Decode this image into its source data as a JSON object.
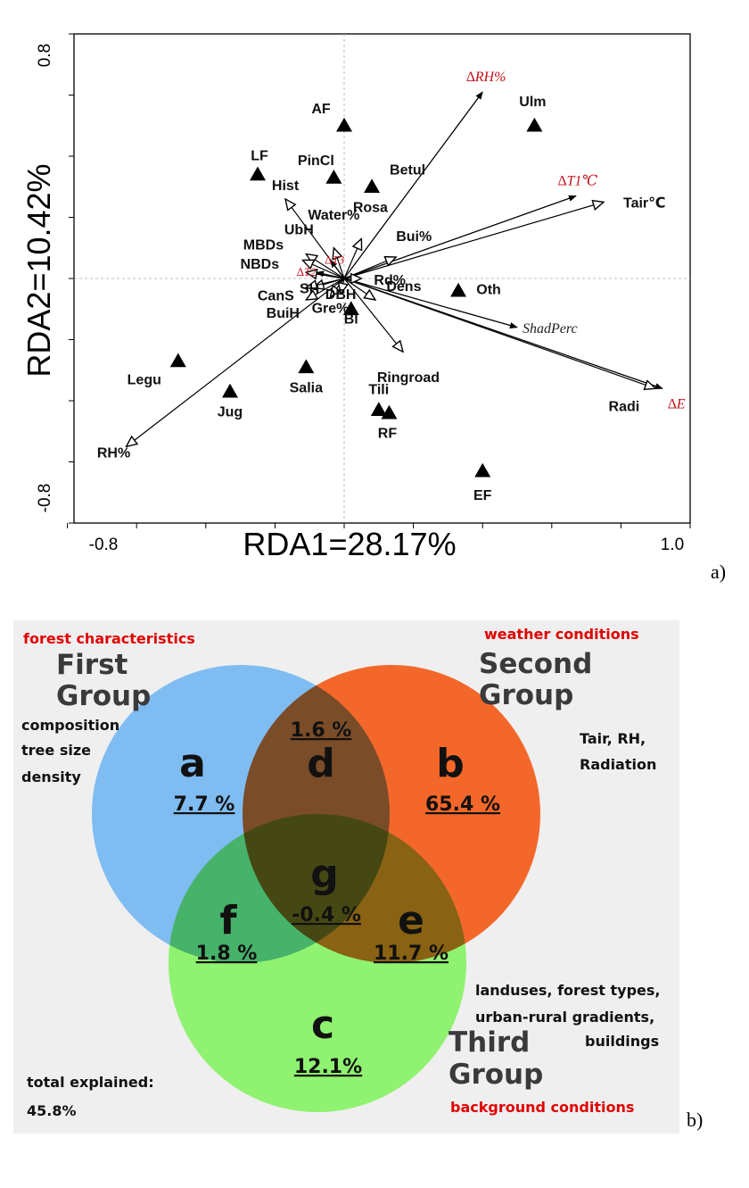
{
  "panel_a": {
    "panel_label": "a)",
    "chart_data": {
      "type": "scatter",
      "title": "",
      "xlabel": "RDA1=28.17%",
      "ylabel": "RDA2=10.42%",
      "xlim": [
        -0.8,
        1.0
      ],
      "ylim": [
        -0.8,
        0.8
      ],
      "x_tick_labels": [
        "-0.8",
        "1.0"
      ],
      "y_tick_labels": [
        "0.8",
        "-0.8"
      ],
      "grid": false,
      "reference_lines": "dotted at x=0 and y=0",
      "species_points": [
        {
          "label": "AF",
          "x": 0.0,
          "y": 0.5
        },
        {
          "label": "Ulm",
          "x": 0.55,
          "y": 0.5
        },
        {
          "label": "LF",
          "x": -0.25,
          "y": 0.34
        },
        {
          "label": "PinCl",
          "x": -0.03,
          "y": 0.33
        },
        {
          "label": "Betul",
          "x": 0.08,
          "y": 0.3
        },
        {
          "label": "Oth",
          "x": 0.33,
          "y": -0.04
        },
        {
          "label": "Bl",
          "x": 0.02,
          "y": -0.1
        },
        {
          "label": "Legu",
          "x": -0.48,
          "y": -0.27
        },
        {
          "label": "Salia",
          "x": -0.11,
          "y": -0.29
        },
        {
          "label": "Jug",
          "x": -0.33,
          "y": -0.37
        },
        {
          "label": "Tili",
          "x": 0.1,
          "y": -0.43
        },
        {
          "label": "RF",
          "x": 0.13,
          "y": -0.44
        },
        {
          "label": "EF",
          "x": 0.4,
          "y": -0.63
        }
      ],
      "response_arrows": [
        {
          "label": "∆RH%",
          "x": 0.4,
          "y": 0.61
        },
        {
          "label": "∆T1℃",
          "x": 0.67,
          "y": 0.27
        },
        {
          "label": "∆E",
          "x": 0.92,
          "y": -0.36
        },
        {
          "label": "ShadPerc",
          "x": 0.5,
          "y": -0.16
        },
        {
          "label": "∆T3",
          "x": -0.04,
          "y": 0.06
        },
        {
          "label": "∆T2",
          "x": -0.08,
          "y": 0.02
        }
      ],
      "explanatory_arrows": [
        {
          "label": "Tair℃",
          "x": 0.75,
          "y": 0.25
        },
        {
          "label": "Radi",
          "x": 0.9,
          "y": -0.36
        },
        {
          "label": "RH%",
          "x": -0.63,
          "y": -0.55
        },
        {
          "label": "Hist",
          "x": -0.17,
          "y": 0.26
        },
        {
          "label": "Water%",
          "x": -0.03,
          "y": 0.1
        },
        {
          "label": "UbH",
          "x": -0.11,
          "y": 0.08
        },
        {
          "label": "MBDs",
          "x": -0.12,
          "y": 0.06
        },
        {
          "label": "NBDs",
          "x": -0.11,
          "y": 0.02
        },
        {
          "label": "SH",
          "x": -0.09,
          "y": -0.03
        },
        {
          "label": "CanS",
          "x": -0.11,
          "y": -0.03
        },
        {
          "label": "BuiH",
          "x": -0.11,
          "y": -0.07
        },
        {
          "label": "Gre%",
          "x": -0.04,
          "y": -0.06
        },
        {
          "label": "DBH",
          "x": -0.01,
          "y": -0.05
        },
        {
          "label": "Rosa",
          "x": 0.05,
          "y": 0.13
        },
        {
          "label": "Bui%",
          "x": 0.15,
          "y": 0.07
        },
        {
          "label": "Rd%",
          "x": 0.05,
          "y": 0.0
        },
        {
          "label": "Dens",
          "x": 0.09,
          "y": -0.07
        },
        {
          "label": "Ringroad",
          "x": 0.17,
          "y": -0.24
        }
      ]
    }
  },
  "panel_b": {
    "panel_label": "b)",
    "groups": {
      "first": {
        "category": "forest characteristics",
        "title_line1": "First",
        "title_line2": "Group",
        "desc": [
          "composition",
          "tree size",
          "density"
        ]
      },
      "second": {
        "category": "weather conditions",
        "title_line1": "Second",
        "title_line2": "Group",
        "desc": [
          "Tair, RH,",
          "Radiation"
        ]
      },
      "third": {
        "category": "background conditions",
        "title_line1": "Third",
        "title_line2": "Group",
        "desc": [
          "landuses, forest types,",
          "urban-rural gradients,",
          "buildings"
        ]
      }
    },
    "regions": {
      "a": {
        "letter": "a",
        "value": "7.7 %"
      },
      "b": {
        "letter": "b",
        "value": "65.4 %"
      },
      "c": {
        "letter": "c",
        "value": "12.1%"
      },
      "d": {
        "letter": "d",
        "value": "1.6 %"
      },
      "e": {
        "letter": "e",
        "value": "11.7 %"
      },
      "f": {
        "letter": "f",
        "value": "1.8 %"
      },
      "g": {
        "letter": "g",
        "value": "-0.4 %"
      }
    },
    "total": {
      "line1": "total explained:",
      "line2": "45.8%"
    },
    "colors": {
      "first": "#7fbcf2",
      "second": "#f4672a",
      "third": "#8ff270",
      "background": "#efefef",
      "category_text": "#e00000"
    }
  }
}
